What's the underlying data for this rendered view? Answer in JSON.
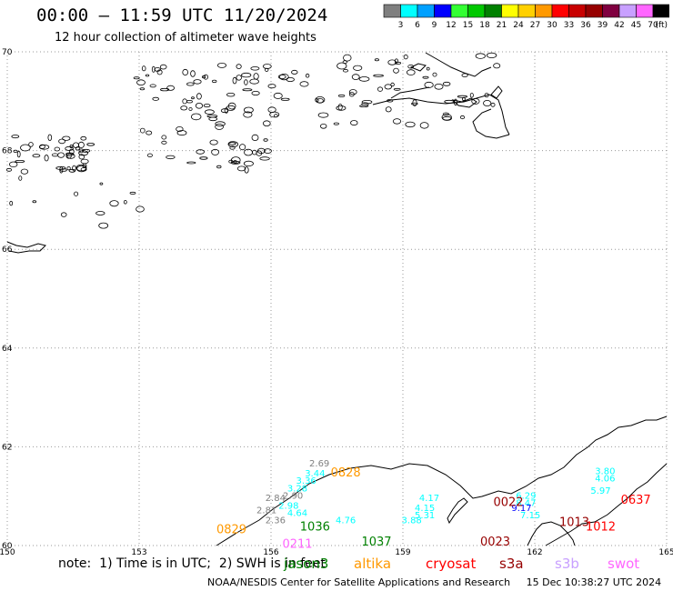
{
  "header": {
    "title": "00:00 – 11:59 UTC 11/20/2024",
    "subtitle": "12 hour collection of altimeter wave heights"
  },
  "colorbar": {
    "unit": "(ft)",
    "bins": [
      {
        "label": "3",
        "color": "#7f7f7f"
      },
      {
        "label": "6",
        "color": "#00ffff"
      },
      {
        "label": "9",
        "color": "#00a0ff"
      },
      {
        "label": "12",
        "color": "#0000ff"
      },
      {
        "label": "15",
        "color": "#33ff33"
      },
      {
        "label": "18",
        "color": "#00c800"
      },
      {
        "label": "21",
        "color": "#008000"
      },
      {
        "label": "24",
        "color": "#ffff00"
      },
      {
        "label": "27",
        "color": "#ffd000"
      },
      {
        "label": "30",
        "color": "#ff9900"
      },
      {
        "label": "33",
        "color": "#ff0000"
      },
      {
        "label": "36",
        "color": "#c80000"
      },
      {
        "label": "39",
        "color": "#960000"
      },
      {
        "label": "42",
        "color": "#800040"
      },
      {
        "label": "45",
        "color": "#c8a0ff"
      },
      {
        "label": "70",
        "color": "#ff66ff"
      },
      {
        "label": "",
        "color": "#000000"
      }
    ]
  },
  "chart_data": {
    "type": "scatter",
    "title": "00:00 – 11:59 UTC 11/20/2024",
    "subtitle": "12 hour collection of altimeter wave heights",
    "x_ticks": [
      "150",
      "153",
      "156",
      "159",
      "162",
      "165"
    ],
    "y_ticks": [
      "70",
      "68",
      "66",
      "64",
      "62",
      "60"
    ],
    "xlim": [
      150,
      165
    ],
    "ylim": [
      60,
      70
    ],
    "grid": true,
    "series": [
      {
        "name": "jason3",
        "color": "#008000",
        "points": [
          {
            "x": 157.0,
            "y": 60.3,
            "label": "1036"
          },
          {
            "x": 158.4,
            "y": 60.0,
            "label": "1037"
          }
        ]
      },
      {
        "name": "altika",
        "color": "#ff9900",
        "points": [
          {
            "x": 157.7,
            "y": 61.4,
            "label": "0828"
          },
          {
            "x": 155.1,
            "y": 60.25,
            "label": "0829"
          }
        ]
      },
      {
        "name": "cryosat",
        "color": "#ff0000",
        "points": [
          {
            "x": 163.5,
            "y": 60.3,
            "label": "1012"
          },
          {
            "x": 164.3,
            "y": 60.85,
            "label": "0637"
          }
        ]
      },
      {
        "name": "s3a",
        "color": "#960000",
        "points": [
          {
            "x": 161.4,
            "y": 60.8,
            "label": "0022"
          },
          {
            "x": 161.1,
            "y": 60.0,
            "label": "0023"
          },
          {
            "x": 162.9,
            "y": 60.4,
            "label": "1013"
          }
        ]
      },
      {
        "name": "s3b",
        "color": "#c8a0ff",
        "points": []
      },
      {
        "name": "swot",
        "color": "#ff66ff",
        "points": [
          {
            "x": 156.6,
            "y": 59.95,
            "label": "0211"
          }
        ]
      }
    ],
    "swh_labels": [
      {
        "x": 157.1,
        "y": 61.6,
        "value": "2.69",
        "color": "#7f7f7f"
      },
      {
        "x": 157.0,
        "y": 61.4,
        "value": "3.44",
        "color": "#00ffff"
      },
      {
        "x": 156.8,
        "y": 61.25,
        "value": "3.36",
        "color": "#00ffff"
      },
      {
        "x": 156.6,
        "y": 61.1,
        "value": "3.28",
        "color": "#00ffff"
      },
      {
        "x": 156.5,
        "y": 60.95,
        "value": "2.90",
        "color": "#7f7f7f"
      },
      {
        "x": 156.1,
        "y": 60.9,
        "value": "2.84",
        "color": "#7f7f7f"
      },
      {
        "x": 156.4,
        "y": 60.75,
        "value": "2.98",
        "color": "#00ffff"
      },
      {
        "x": 155.9,
        "y": 60.65,
        "value": "2.81",
        "color": "#7f7f7f"
      },
      {
        "x": 156.6,
        "y": 60.6,
        "value": "4.64",
        "color": "#00ffff"
      },
      {
        "x": 156.1,
        "y": 60.45,
        "value": "2.36",
        "color": "#7f7f7f"
      },
      {
        "x": 157.7,
        "y": 60.45,
        "value": "4.76",
        "color": "#00ffff"
      },
      {
        "x": 159.6,
        "y": 60.9,
        "value": "4.17",
        "color": "#00ffff"
      },
      {
        "x": 159.5,
        "y": 60.7,
        "value": "4.15",
        "color": "#00ffff"
      },
      {
        "x": 159.5,
        "y": 60.55,
        "value": "5.31",
        "color": "#00ffff"
      },
      {
        "x": 159.2,
        "y": 60.45,
        "value": "3.88",
        "color": "#00ffff"
      },
      {
        "x": 161.8,
        "y": 60.95,
        "value": "6.29",
        "color": "#00ffff"
      },
      {
        "x": 161.8,
        "y": 60.8,
        "value": "8.47",
        "color": "#00ffff"
      },
      {
        "x": 161.7,
        "y": 60.7,
        "value": "9.17",
        "color": "#0000ff"
      },
      {
        "x": 161.9,
        "y": 60.55,
        "value": "7.15",
        "color": "#00ffff"
      },
      {
        "x": 163.6,
        "y": 61.45,
        "value": "3.80",
        "color": "#00ffff"
      },
      {
        "x": 163.6,
        "y": 61.3,
        "value": "4.06",
        "color": "#00ffff"
      },
      {
        "x": 163.5,
        "y": 61.05,
        "value": "5.97",
        "color": "#00ffff"
      }
    ]
  },
  "legend": [
    {
      "name": "jason3",
      "color": "#008000"
    },
    {
      "name": "altika",
      "color": "#ff9900"
    },
    {
      "name": "cryosat",
      "color": "#ff0000"
    },
    {
      "name": "s3a",
      "color": "#960000"
    },
    {
      "name": "s3b",
      "color": "#c8a0ff"
    },
    {
      "name": "swot",
      "color": "#ff66ff"
    }
  ],
  "footer": {
    "note": "note:  1) Time is in UTC;  2) SWH is in feet",
    "credit": "NOAA/NESDIS Center for Satellite Applications and Research     15 Dec 10:38:27 UTC 2024"
  }
}
